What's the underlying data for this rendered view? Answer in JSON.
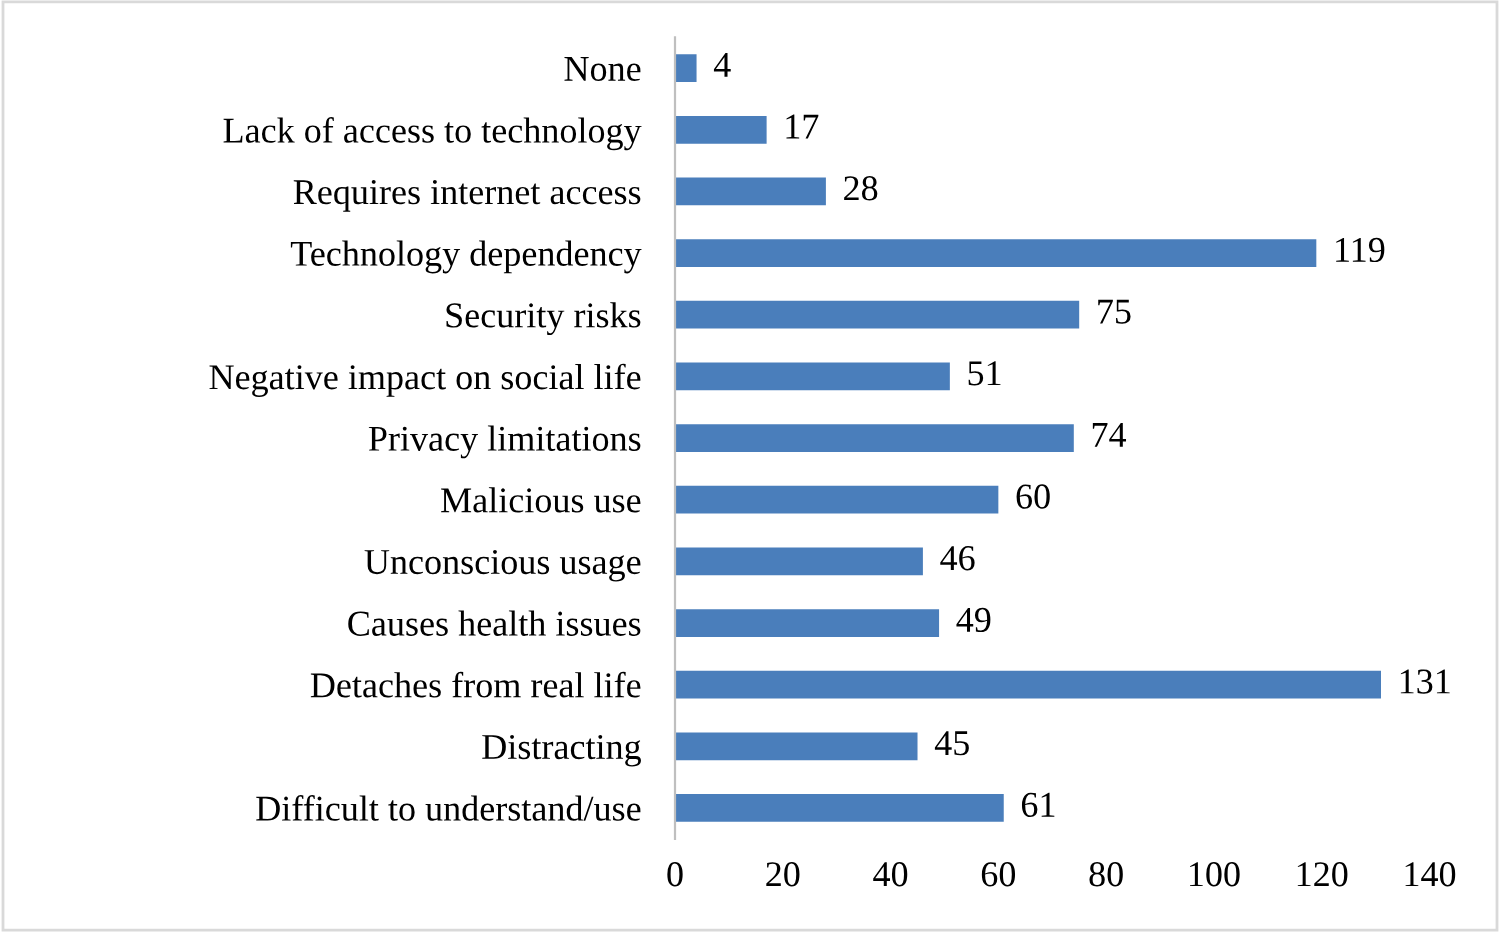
{
  "chart_data": {
    "type": "bar",
    "orientation": "horizontal",
    "categories": [
      "None",
      "Lack of access to technology",
      "Requires internet access",
      "Technology dependency",
      "Security risks",
      "Negative impact on social life",
      "Privacy limitations",
      "Malicious use",
      "Unconscious usage",
      "Causes health issues",
      "Detaches from real life",
      "Distracting",
      "Difficult to understand/use"
    ],
    "values": [
      4,
      17,
      28,
      119,
      75,
      51,
      74,
      60,
      46,
      49,
      131,
      45,
      61
    ],
    "color": "#4a7ebb",
    "xlim": [
      0,
      140
    ],
    "xticks": [
      0,
      20,
      40,
      60,
      80,
      100,
      120,
      140
    ],
    "data_labels": true,
    "grid": false,
    "legend": false
  }
}
